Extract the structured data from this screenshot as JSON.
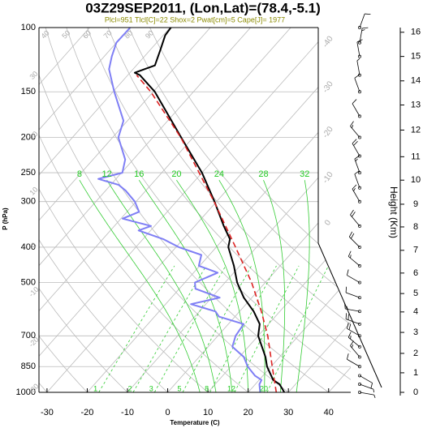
{
  "chart_data": {
    "type": "skewt",
    "title": "03Z29SEP2011, (Lon,Lat)=(78.4,-5.1)",
    "subtitle": "Plcl=951 Tlcl[C]=22 Shox=2 Pwat[cm]=5 Cape[J]= 1977",
    "x_label": "Temperature (C)",
    "y_label": "P (hPa)",
    "xlim": [
      -32,
      45.5
    ],
    "xticks": [
      -30,
      -20,
      -10,
      0,
      10,
      20,
      30,
      40
    ],
    "ylim": [
      1000,
      100
    ],
    "yticks": [
      100,
      150,
      200,
      250,
      300,
      400,
      500,
      700,
      850,
      1000
    ],
    "log_y": true,
    "grid": true,
    "series": [
      {
        "color": "#000000",
        "pressure": [
          1000,
          950,
          925,
          850,
          800,
          700,
          650,
          600,
          550,
          500,
          450,
          400,
          380,
          350,
          300,
          250,
          200,
          150,
          135,
          133,
          127,
          115,
          105,
          100
        ],
        "values": [
          29,
          26,
          23.5,
          19,
          16.5,
          10,
          7.8,
          3.5,
          -2,
          -7,
          -11.5,
          -17,
          -18.4,
          -22.8,
          -30.5,
          -40,
          -53,
          -69.6,
          -77,
          -78.8,
          -75.4,
          -77.5,
          -79.5,
          -79.8
        ]
      },
      {
        "color": "#7f7ff5",
        "pressure": [
          1000,
          975,
          950,
          925,
          900,
          850,
          800,
          750,
          700,
          650,
          620,
          600,
          573,
          550,
          520,
          500,
          470,
          450,
          420,
          400,
          380,
          360,
          350,
          334,
          320,
          300,
          280,
          270,
          260,
          250,
          230,
          200,
          180,
          150,
          130,
          120,
          110,
          100
        ],
        "values": [
          23,
          22,
          21,
          20.6,
          18,
          14.2,
          11.1,
          6,
          4.4,
          3.8,
          -4,
          -6,
          -13.7,
          -8,
          -16,
          -17.5,
          -14,
          -20.2,
          -22,
          -29.3,
          -35,
          -43,
          -40.9,
          -49.6,
          -47,
          -50.3,
          -55,
          -58,
          -64.4,
          -59.8,
          -62,
          -68.6,
          -71,
          -79.7,
          -86,
          -88.1,
          -90,
          -89.9
        ]
      },
      {
        "color": "#dd2222",
        "dashed": true,
        "pressure": [
          1000,
          850,
          700,
          600,
          500,
          400,
          300,
          250,
          200,
          150,
          135
        ],
        "values": [
          27,
          20.3,
          12.4,
          5.4,
          -3.4,
          -15.2,
          -30.6,
          -40.7,
          -53.1,
          -70.6,
          -77.8
        ]
      }
    ],
    "isotherms": [
      -100,
      -90,
      -80,
      -70,
      -60,
      -50,
      -40,
      -30,
      -20,
      -10,
      0,
      10,
      20,
      30,
      40
    ],
    "dry_adiabats": [
      -30,
      -20,
      -10,
      0,
      10,
      20,
      30,
      40,
      50,
      60,
      70,
      80,
      90
    ],
    "moist_adiabats": [
      8,
      12,
      16,
      20,
      24,
      28,
      32
    ],
    "mixing_ratios": [
      1,
      2,
      3,
      5,
      8,
      12,
      20
    ],
    "winds": {
      "pressure": [
        1000,
        950,
        900,
        850,
        800,
        750,
        700,
        650,
        600,
        550,
        500,
        450,
        400,
        350,
        300,
        275,
        250,
        225,
        200,
        175,
        150,
        135,
        120,
        110,
        100
      ],
      "direction": [
        100,
        110,
        120,
        300,
        320,
        310,
        300,
        290,
        280,
        290,
        300,
        310,
        315,
        320,
        330,
        340,
        340,
        330,
        320,
        330,
        340,
        350,
        350,
        10,
        20
      ],
      "speed": [
        5,
        8,
        10,
        10,
        15,
        15,
        20,
        20,
        15,
        10,
        10,
        15,
        20,
        20,
        15,
        10,
        15,
        20,
        15,
        10,
        10,
        5,
        10,
        15,
        10
      ]
    },
    "height_axis": {
      "label": "Height (Km)",
      "ticks": [
        0,
        1,
        2,
        3,
        4,
        5,
        6,
        7,
        8,
        9,
        10,
        11,
        12,
        13,
        14,
        15,
        16
      ],
      "pressure": [
        1000,
        884,
        782,
        685,
        602,
        536,
        471,
        408,
        352,
        305,
        262,
        226,
        191,
        163,
        140,
        120,
        103
      ]
    }
  }
}
